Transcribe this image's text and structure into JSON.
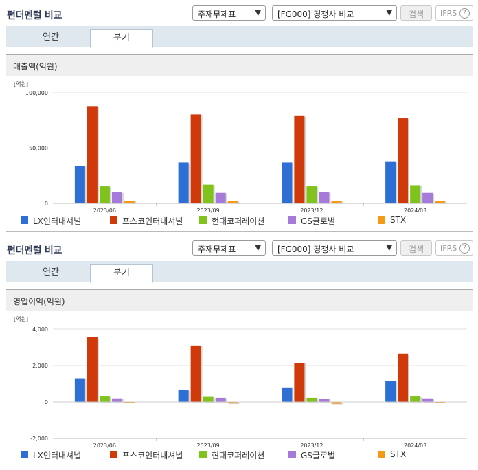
{
  "panels": [
    {
      "title": "펀더멘털 비교",
      "select1": "주재무제표",
      "select2": "[FG000] 경쟁사 비교",
      "search_label": "검색",
      "ifrs_label": "IFRS",
      "help_icon": "?",
      "tabs": [
        "연간",
        "분기"
      ],
      "active_tab": "분기",
      "section_title": "매출액(억원)"
    },
    {
      "title": "펀더멘털 비교",
      "select1": "주재무제표",
      "select2": "[FG000] 경쟁사 비교",
      "search_label": "검색",
      "ifrs_label": "IFRS",
      "help_icon": "?",
      "tabs": [
        "연간",
        "분기"
      ],
      "active_tab": "분기",
      "section_title": "영업이익(억원)"
    }
  ],
  "colors": {
    "accent_title": "#2f3a57",
    "tab_bg": "#dfe7ef"
  },
  "chart_data": [
    {
      "type": "bar",
      "unit_label": "[억원]",
      "categories": [
        "2023/06",
        "2023/09",
        "2023/12",
        "2024/03"
      ],
      "ylim": [
        0,
        100000
      ],
      "yticks": [
        0,
        50000,
        100000
      ],
      "ytick_labels": [
        "0",
        "50,000",
        "100,000"
      ],
      "grid": true,
      "legend_position": "bottom",
      "series": [
        {
          "name": "LX인터내셔널",
          "color": "#2e6fd6",
          "values": [
            34000,
            37000,
            37000,
            37500
          ]
        },
        {
          "name": "포스코인터내셔널",
          "color": "#d03a0a",
          "values": [
            88000,
            80500,
            79000,
            77000
          ]
        },
        {
          "name": "현대코퍼레이션",
          "color": "#7fc31c",
          "values": [
            15500,
            17000,
            15500,
            16500
          ]
        },
        {
          "name": "GS글로벌",
          "color": "#a57ad9",
          "values": [
            10000,
            9500,
            10000,
            9500
          ]
        },
        {
          "name": "STX",
          "color": "#f59a14",
          "values": [
            2500,
            2000,
            2500,
            2000
          ]
        }
      ]
    },
    {
      "type": "bar",
      "unit_label": "[억원]",
      "categories": [
        "2023/06",
        "2023/09",
        "2023/12",
        "2024/03"
      ],
      "ylim": [
        -2000,
        4000
      ],
      "yticks": [
        -2000,
        0,
        2000,
        4000
      ],
      "ytick_labels": [
        "-2,000",
        "0",
        "2,000",
        "4,000"
      ],
      "grid": true,
      "legend_position": "bottom",
      "series": [
        {
          "name": "LX인터내셔널",
          "color": "#2e6fd6",
          "values": [
            1300,
            650,
            800,
            1150
          ]
        },
        {
          "name": "포스코인터내셔널",
          "color": "#d03a0a",
          "values": [
            3550,
            3100,
            2150,
            2650
          ]
        },
        {
          "name": "현대코퍼레이션",
          "color": "#7fc31c",
          "values": [
            300,
            280,
            230,
            300
          ]
        },
        {
          "name": "GS글로벌",
          "color": "#a57ad9",
          "values": [
            200,
            230,
            180,
            200
          ]
        },
        {
          "name": "STX",
          "color": "#f59a14",
          "values": [
            0,
            -80,
            -100,
            0
          ]
        }
      ]
    }
  ]
}
